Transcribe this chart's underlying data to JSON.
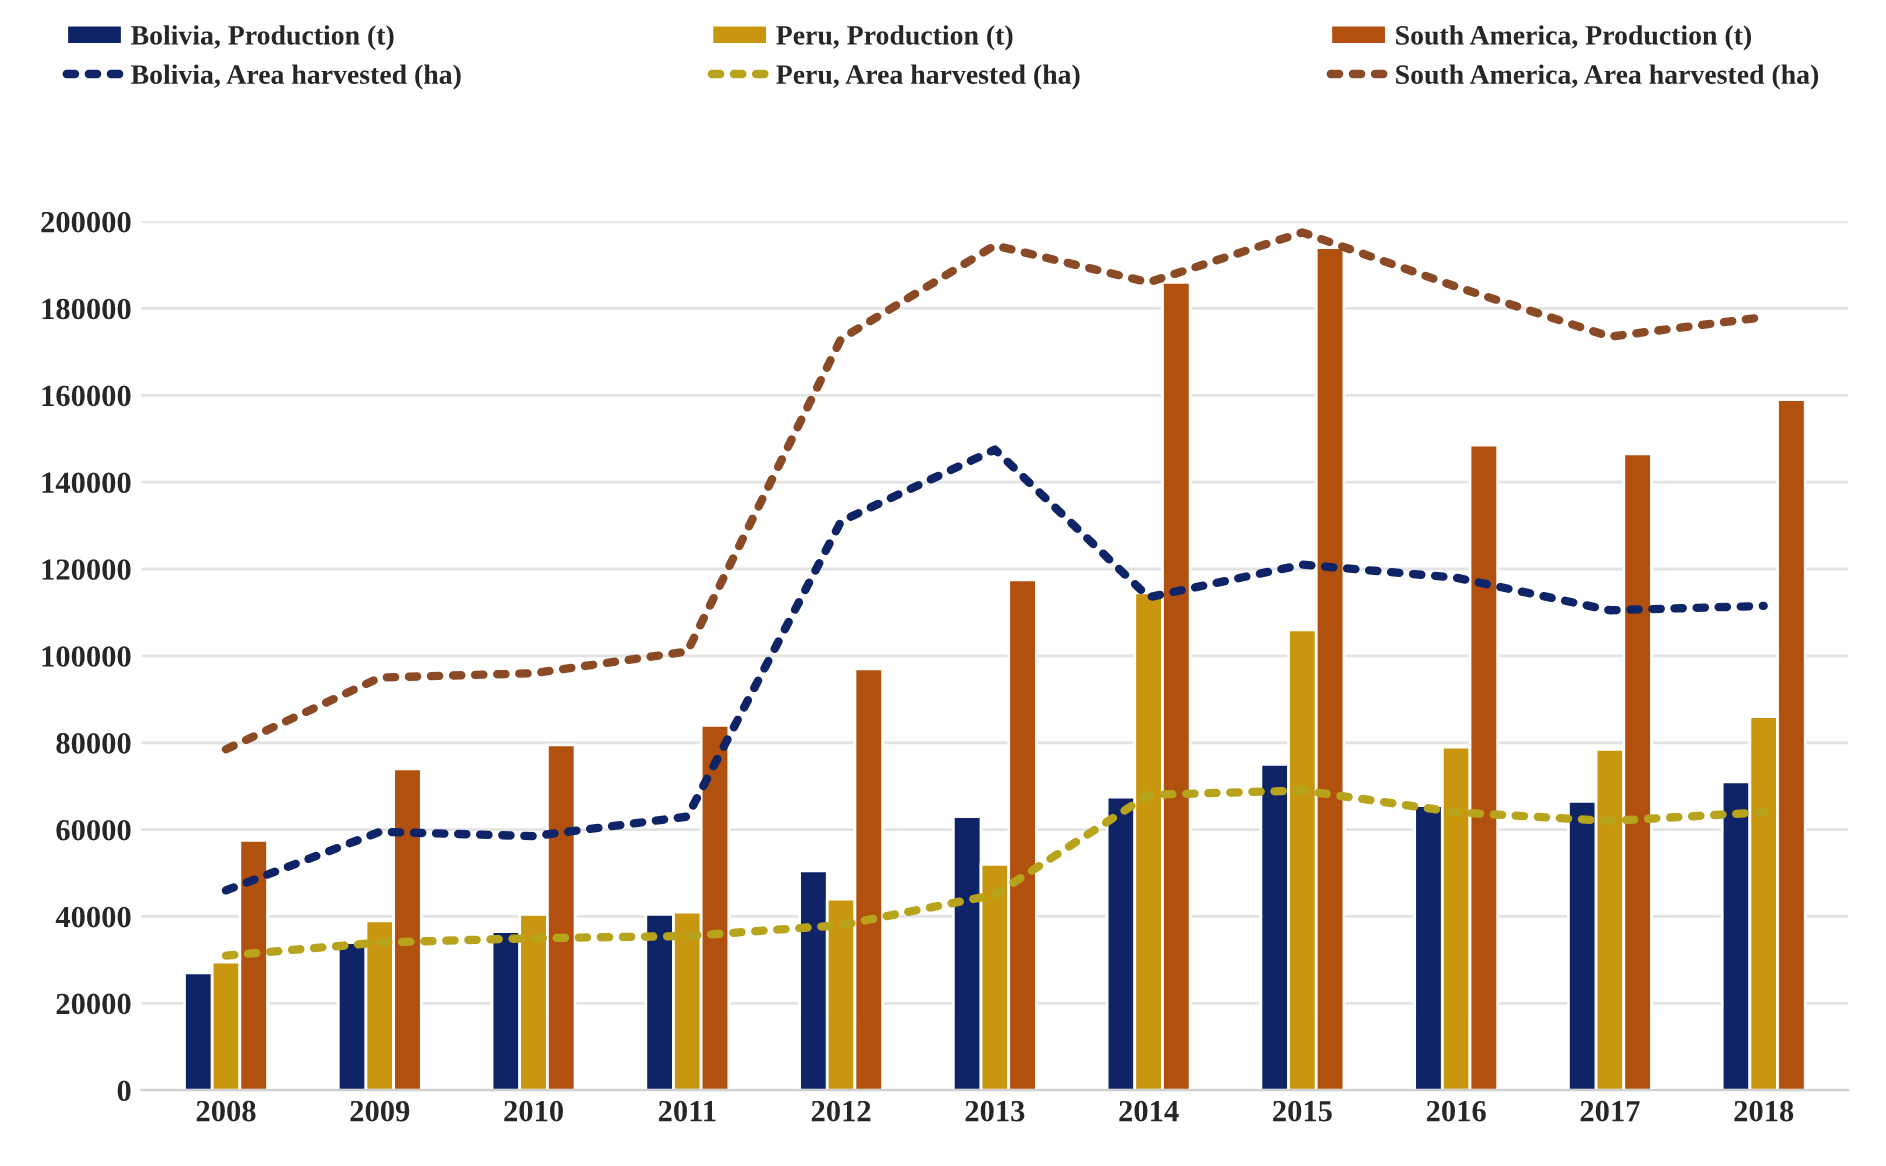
{
  "chart_data": {
    "type": "bar",
    "categories": [
      "2008",
      "2009",
      "2010",
      "2011",
      "2012",
      "2013",
      "2014",
      "2015",
      "2016",
      "2017",
      "2018"
    ],
    "series": [
      {
        "name": "Bolivia, Production (t)",
        "color": "#0e2466",
        "values": [
          27000,
          34000,
          36500,
          40500,
          50500,
          63000,
          67500,
          75000,
          65500,
          66500,
          71000
        ]
      },
      {
        "name": "Peru, Production (t)",
        "color": "#c9960f",
        "values": [
          29500,
          39000,
          40500,
          41000,
          44000,
          52000,
          114500,
          106000,
          79000,
          78500,
          86000
        ]
      },
      {
        "name": "South America, Production (t)",
        "color": "#b2500f",
        "values": [
          57500,
          74000,
          79500,
          84000,
          97000,
          117500,
          186000,
          194000,
          148500,
          146500,
          159000
        ]
      },
      {
        "name": "Bolivia, Area harvested (ha)",
        "type": "line",
        "line_style": "dotted",
        "color": "#0e2466",
        "values": [
          46000,
          59500,
          58500,
          63000,
          131000,
          147500,
          113500,
          121000,
          118000,
          110500,
          111500
        ]
      },
      {
        "name": "Peru, Area harvested (ha)",
        "type": "line",
        "line_style": "dotted",
        "color": "#b8a41c",
        "values": [
          31000,
          34000,
          35000,
          35500,
          38000,
          45000,
          68000,
          69000,
          64000,
          62000,
          64000
        ]
      },
      {
        "name": "South America, Area harvested (ha)",
        "type": "line",
        "line_style": "dotted",
        "color": "#8a4a25",
        "values": [
          78500,
          95000,
          96000,
          101000,
          173000,
          194500,
          186000,
          197500,
          185000,
          173500,
          178000
        ]
      }
    ],
    "ylim": [
      0,
      200000
    ],
    "yticks": [
      0,
      20000,
      40000,
      60000,
      80000,
      100000,
      120000,
      140000,
      160000,
      180000,
      200000
    ],
    "grid": "y",
    "legend": "top"
  }
}
